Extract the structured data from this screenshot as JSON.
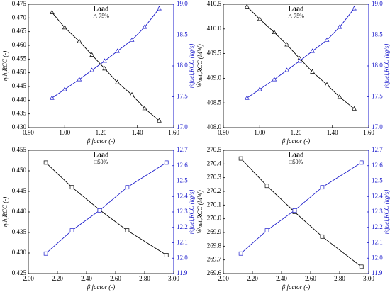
{
  "chart_data": [
    {
      "type": "line",
      "xlabel": "β factor (-)",
      "ylabel": "ηth,RCC (-)",
      "y2label": "ṁfuel,RCC (kg/s)",
      "legend_title": "Load",
      "legend_entry": "△ 75%",
      "marker": "triangle",
      "x": [
        0.93,
        1.0,
        1.08,
        1.15,
        1.22,
        1.29,
        1.37,
        1.44,
        1.52
      ],
      "series": [
        {
          "color": "#000000",
          "values": [
            0.472,
            0.4665,
            0.4615,
            0.4565,
            0.4515,
            0.4465,
            0.442,
            0.437,
            0.4325
          ]
        },
        {
          "color": "#1a1acc",
          "axis": "y2",
          "values": [
            17.48,
            17.62,
            17.78,
            17.93,
            18.08,
            18.24,
            18.42,
            18.63,
            18.93
          ]
        }
      ],
      "xlim": [
        0.8,
        1.6
      ],
      "xticks": [
        {
          "value": 0.8,
          "label": "0.80"
        },
        {
          "value": 1.0,
          "label": "1.00"
        },
        {
          "value": 1.2,
          "label": "1.20"
        },
        {
          "value": 1.4,
          "label": "1.40"
        },
        {
          "value": 1.6,
          "label": "1.60"
        }
      ],
      "ylim": [
        0.43,
        0.475
      ],
      "yticks": [
        {
          "value": 0.43,
          "label": "0.430"
        },
        0.435,
        {
          "value": 0.44,
          "label": "0.440"
        },
        0.445,
        {
          "value": 0.45,
          "label": "0.450"
        },
        0.455,
        {
          "value": 0.46,
          "label": "0.460"
        },
        0.465,
        {
          "value": 0.47,
          "label": "0.470"
        },
        0.475
      ],
      "y2lim": [
        17.0,
        19.0
      ],
      "y2ticks": [
        {
          "value": 17.0,
          "label": "17.0"
        },
        17.5,
        {
          "value": 18.0,
          "label": "18.0"
        },
        18.5,
        {
          "value": 19.0,
          "label": "19.0"
        }
      ]
    },
    {
      "type": "line",
      "xlabel": "β factor (-)",
      "ylabel": "Ẇnet,RCC (MW)",
      "y2label": "ṁfuel,RCC (kg/s)",
      "legend_title": "Load",
      "legend_entry": "△ 75%",
      "marker": "triangle",
      "x": [
        0.93,
        1.0,
        1.08,
        1.15,
        1.22,
        1.29,
        1.37,
        1.44,
        1.52
      ],
      "series": [
        {
          "color": "#000000",
          "values": [
            410.45,
            410.2,
            409.93,
            409.68,
            409.4,
            409.13,
            408.87,
            408.62,
            408.38
          ]
        },
        {
          "color": "#1a1acc",
          "axis": "y2",
          "values": [
            17.48,
            17.62,
            17.78,
            17.93,
            18.08,
            18.24,
            18.42,
            18.63,
            18.93
          ]
        }
      ],
      "xlim": [
        0.8,
        1.6
      ],
      "xticks": [
        {
          "value": 0.8,
          "label": "0.80"
        },
        {
          "value": 1.0,
          "label": "1.00"
        },
        {
          "value": 1.2,
          "label": "1.20"
        },
        {
          "value": 1.4,
          "label": "1.40"
        },
        {
          "value": 1.6,
          "label": "1.60"
        }
      ],
      "ylim": [
        408.0,
        410.5
      ],
      "yticks": [
        {
          "value": 408.0,
          "label": "408.0"
        },
        408.5,
        {
          "value": 409.0,
          "label": "409.0"
        },
        409.5,
        {
          "value": 410.0,
          "label": "410.0"
        },
        410.5
      ],
      "y2lim": [
        17.0,
        19.0
      ],
      "y2ticks": [
        {
          "value": 17.0,
          "label": "17.0"
        },
        17.5,
        {
          "value": 18.0,
          "label": "18.0"
        },
        18.5,
        {
          "value": 19.0,
          "label": "19.0"
        }
      ]
    },
    {
      "type": "line",
      "xlabel": "β factor (-)",
      "ylabel": "ηth,RCC (-)",
      "y2label": "ṁfuel,RCC (kg/s)",
      "legend_title": "Load",
      "legend_entry": "□50%",
      "marker": "square",
      "x": [
        2.12,
        2.3,
        2.49,
        2.68,
        2.95
      ],
      "series": [
        {
          "color": "#000000",
          "values": [
            0.452,
            0.446,
            0.4405,
            0.4355,
            0.4295
          ]
        },
        {
          "color": "#1a1acc",
          "axis": "y2",
          "values": [
            12.03,
            12.18,
            12.31,
            12.46,
            12.62
          ]
        }
      ],
      "xlim": [
        2.0,
        3.0
      ],
      "xticks": [
        {
          "value": 2.0,
          "label": "2.00"
        },
        {
          "value": 2.2,
          "label": "2.20"
        },
        {
          "value": 2.4,
          "label": "2.40"
        },
        {
          "value": 2.6,
          "label": "2.60"
        },
        {
          "value": 2.8,
          "label": "2.80"
        },
        {
          "value": 3.0,
          "label": "3.00"
        }
      ],
      "ylim": [
        0.425,
        0.455
      ],
      "yticks": [
        0.425,
        {
          "value": 0.43,
          "label": "0.430"
        },
        0.435,
        {
          "value": 0.44,
          "label": "0.440"
        },
        0.445,
        {
          "value": 0.45,
          "label": "0.450"
        },
        0.455
      ],
      "y2lim": [
        11.9,
        12.7
      ],
      "y2ticks": [
        11.9,
        {
          "value": 12.0,
          "label": "12.0"
        },
        12.1,
        12.2,
        12.3,
        12.4,
        12.5,
        12.6,
        12.7
      ]
    },
    {
      "type": "line",
      "xlabel": "β factor (-)",
      "ylabel": "Ẇnet,RCC (MW)",
      "y2label": "ṁfuel,RCC (kg/s)",
      "legend_title": "Load",
      "legend_entry": "□50%",
      "marker": "square",
      "x": [
        2.12,
        2.3,
        2.49,
        2.68,
        2.95
      ],
      "series": [
        {
          "color": "#000000",
          "values": [
            270.44,
            270.24,
            270.05,
            269.87,
            269.65
          ]
        },
        {
          "color": "#1a1acc",
          "axis": "y2",
          "values": [
            12.03,
            12.18,
            12.31,
            12.46,
            12.62
          ]
        }
      ],
      "xlim": [
        2.0,
        3.0
      ],
      "xticks": [
        {
          "value": 2.0,
          "label": "2.00"
        },
        {
          "value": 2.2,
          "label": "2.20"
        },
        {
          "value": 2.4,
          "label": "2.40"
        },
        {
          "value": 2.6,
          "label": "2.60"
        },
        {
          "value": 2.8,
          "label": "2.80"
        },
        {
          "value": 3.0,
          "label": "3.00"
        }
      ],
      "ylim": [
        269.6,
        270.5
      ],
      "yticks": [
        269.6,
        269.7,
        269.8,
        269.9,
        {
          "value": 270.0,
          "label": "270.0"
        },
        270.1,
        270.2,
        270.3,
        270.4,
        270.5
      ],
      "y2lim": [
        11.9,
        12.7
      ],
      "y2ticks": [
        11.9,
        {
          "value": 12.0,
          "label": "12.0"
        },
        12.1,
        12.2,
        12.3,
        12.4,
        12.5,
        12.6,
        12.7
      ]
    }
  ]
}
